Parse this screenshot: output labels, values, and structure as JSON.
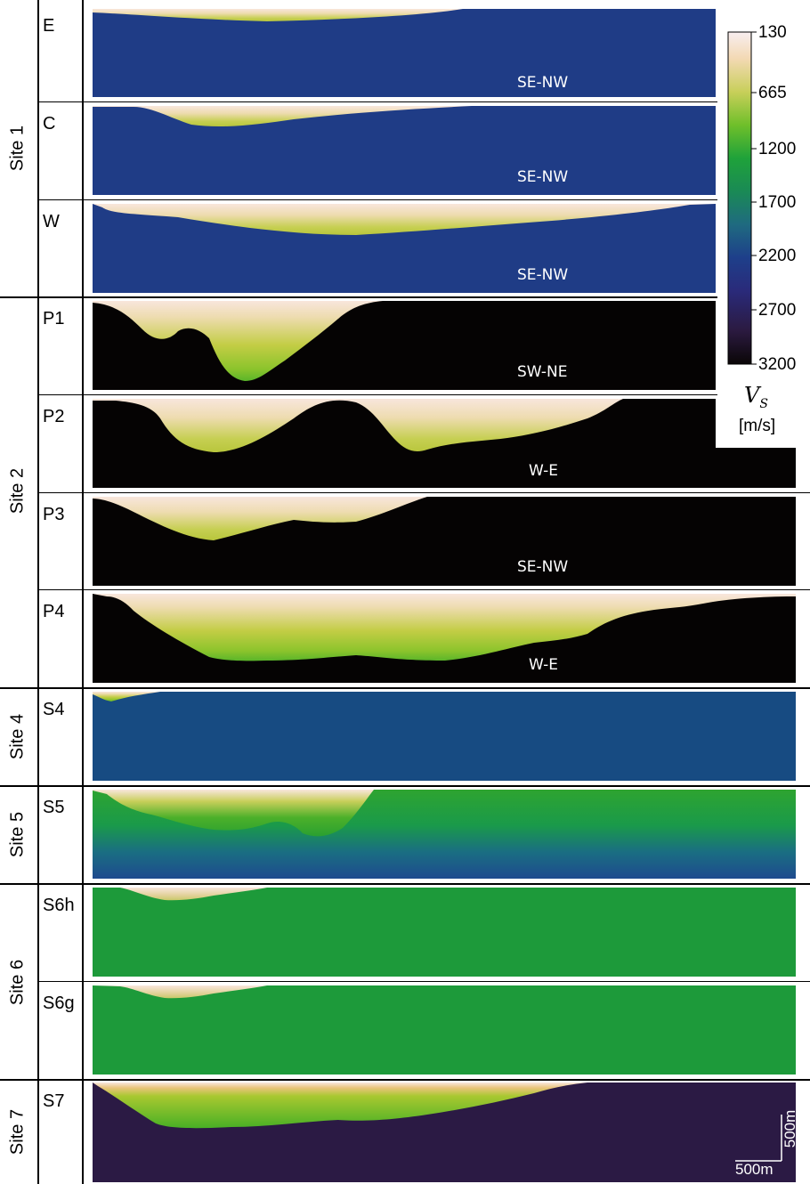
{
  "sites": [
    {
      "label": "Site 1"
    },
    {
      "label": "Site 2"
    },
    {
      "label": "Site 4"
    },
    {
      "label": "Site 5"
    },
    {
      "label": "Site 6"
    },
    {
      "label": "Site 7"
    }
  ],
  "profiles": [
    {
      "name": "E",
      "direction": "SE-NW"
    },
    {
      "name": "C",
      "direction": "SE-NW"
    },
    {
      "name": "W",
      "direction": "SE-NW"
    },
    {
      "name": "P1",
      "direction": "SW-NE"
    },
    {
      "name": "P2",
      "direction": "W-E"
    },
    {
      "name": "P3",
      "direction": "SE-NW"
    },
    {
      "name": "P4",
      "direction": "W-E"
    },
    {
      "name": "S4",
      "direction": ""
    },
    {
      "name": "S5",
      "direction": ""
    },
    {
      "name": "S6h",
      "direction": ""
    },
    {
      "name": "S6g",
      "direction": ""
    },
    {
      "name": "S7",
      "direction": ""
    }
  ],
  "colorbar": {
    "ticks": [
      "130",
      "665",
      "1200",
      "1700",
      "2200",
      "2700",
      "3200"
    ],
    "symbol": "V",
    "subscript": "S",
    "unit": "[m/s]",
    "colors": [
      "#f8eef0",
      "#f3d9b3",
      "#c8cf5a",
      "#6fbf2a",
      "#1fa23a",
      "#1a8a55",
      "#1f6a80",
      "#1e3f8a",
      "#2a2a7a",
      "#2b1a40",
      "#0a0606"
    ]
  },
  "scalebar": {
    "vertical": "500m",
    "horizontal": "500m"
  }
}
